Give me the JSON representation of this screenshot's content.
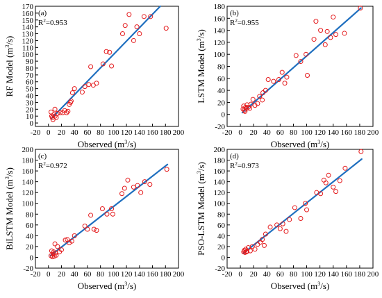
{
  "chart_data": [
    {
      "type": "scatter",
      "panel_label": "(a)",
      "r2_label": "R",
      "r2_sup": "2",
      "r2_value": "=0.953",
      "xlabel": "Observed (m",
      "xlabel_sup": "3",
      "xlabel_tail": "/s)",
      "ylabel": "RF Model (m",
      "ylabel_sup": "3",
      "ylabel_tail": "/s)",
      "xlim": [
        -20,
        200
      ],
      "ylim": [
        -5,
        170
      ],
      "xticks": [
        -20,
        0,
        20,
        40,
        60,
        80,
        100,
        120,
        140,
        160,
        180,
        200
      ],
      "yticks": [
        0,
        10,
        20,
        30,
        40,
        50,
        60,
        70,
        80,
        90,
        100,
        110,
        120,
        130,
        140,
        150,
        160,
        170
      ],
      "fit_line": [
        [
          4,
          6
        ],
        [
          172,
          170
        ]
      ],
      "points": [
        [
          4,
          16
        ],
        [
          5,
          10
        ],
        [
          6,
          8
        ],
        [
          7,
          5
        ],
        [
          8,
          12
        ],
        [
          10,
          10
        ],
        [
          10,
          20
        ],
        [
          12,
          8
        ],
        [
          14,
          14
        ],
        [
          18,
          15
        ],
        [
          22,
          15
        ],
        [
          25,
          18
        ],
        [
          28,
          15
        ],
        [
          30,
          17
        ],
        [
          32,
          27
        ],
        [
          34,
          30
        ],
        [
          35,
          32
        ],
        [
          37,
          44
        ],
        [
          40,
          50
        ],
        [
          52,
          45
        ],
        [
          56,
          53
        ],
        [
          62,
          56
        ],
        [
          65,
          82
        ],
        [
          69,
          55
        ],
        [
          74,
          58
        ],
        [
          84,
          86
        ],
        [
          89,
          104
        ],
        [
          94,
          103
        ],
        [
          97,
          83
        ],
        [
          114,
          130
        ],
        [
          118,
          142
        ],
        [
          124,
          158
        ],
        [
          131,
          120
        ],
        [
          136,
          140
        ],
        [
          140,
          130
        ],
        [
          147,
          155
        ],
        [
          157,
          155
        ],
        [
          181,
          138
        ]
      ]
    },
    {
      "type": "scatter",
      "panel_label": "(b)",
      "r2_label": "R",
      "r2_sup": "2",
      "r2_value": "=0.955",
      "xlabel": "Observed (m",
      "xlabel_sup": "3",
      "xlabel_tail": "/s)",
      "ylabel": "LSTM Model (m",
      "ylabel_sup": "3",
      "ylabel_tail": "/s)",
      "xlim": [
        -20,
        200
      ],
      "ylim": [
        -20,
        180
      ],
      "xticks": [
        -20,
        0,
        20,
        40,
        60,
        80,
        100,
        120,
        140,
        160,
        180,
        200
      ],
      "yticks": [
        -20,
        0,
        20,
        40,
        60,
        80,
        100,
        120,
        140,
        160,
        180
      ],
      "fit_line": [
        [
          3,
          3
        ],
        [
          182,
          177
        ]
      ],
      "points": [
        [
          4,
          9
        ],
        [
          5,
          14
        ],
        [
          6,
          7
        ],
        [
          7,
          5
        ],
        [
          8,
          12
        ],
        [
          9,
          10
        ],
        [
          10,
          16
        ],
        [
          12,
          12
        ],
        [
          14,
          10
        ],
        [
          16,
          17
        ],
        [
          19,
          25
        ],
        [
          22,
          15
        ],
        [
          26,
          18
        ],
        [
          29,
          30
        ],
        [
          33,
          24
        ],
        [
          34,
          36
        ],
        [
          38,
          40
        ],
        [
          42,
          58
        ],
        [
          50,
          55
        ],
        [
          58,
          58
        ],
        [
          63,
          70
        ],
        [
          67,
          52
        ],
        [
          70,
          62
        ],
        [
          84,
          98
        ],
        [
          91,
          88
        ],
        [
          99,
          100
        ],
        [
          101,
          65
        ],
        [
          111,
          125
        ],
        [
          114,
          155
        ],
        [
          121,
          140
        ],
        [
          128,
          116
        ],
        [
          131,
          138
        ],
        [
          136,
          128
        ],
        [
          140,
          162
        ],
        [
          144,
          133
        ],
        [
          157,
          135
        ],
        [
          181,
          177
        ]
      ]
    },
    {
      "type": "scatter",
      "panel_label": "(c)",
      "r2_label": "R",
      "r2_sup": "2",
      "r2_value": "=0.972",
      "xlabel": "Observed (m",
      "xlabel_sup": "3",
      "xlabel_tail": "/s)",
      "ylabel": "BiLSTM Model (m",
      "ylabel_sup": "3",
      "ylabel_tail": "/s)",
      "xlim": [
        -20,
        200
      ],
      "ylim": [
        -20,
        200
      ],
      "xticks": [
        -20,
        0,
        20,
        40,
        60,
        80,
        100,
        120,
        140,
        160,
        180,
        200
      ],
      "yticks": [
        -20,
        0,
        20,
        40,
        60,
        80,
        100,
        120,
        140,
        160,
        180,
        200
      ],
      "fit_line": [
        [
          3,
          3
        ],
        [
          183,
          172
        ]
      ],
      "points": [
        [
          4,
          3
        ],
        [
          5,
          12
        ],
        [
          6,
          1
        ],
        [
          7,
          6
        ],
        [
          8,
          10
        ],
        [
          9,
          2
        ],
        [
          10,
          25
        ],
        [
          11,
          8
        ],
        [
          12,
          4
        ],
        [
          14,
          20
        ],
        [
          17,
          10
        ],
        [
          20,
          14
        ],
        [
          26,
          32
        ],
        [
          29,
          33
        ],
        [
          32,
          27
        ],
        [
          36,
          30
        ],
        [
          40,
          40
        ],
        [
          56,
          58
        ],
        [
          60,
          52
        ],
        [
          65,
          78
        ],
        [
          70,
          52
        ],
        [
          74,
          50
        ],
        [
          83,
          90
        ],
        [
          90,
          80
        ],
        [
          97,
          90
        ],
        [
          99,
          80
        ],
        [
          113,
          118
        ],
        [
          117,
          128
        ],
        [
          122,
          143
        ],
        [
          131,
          130
        ],
        [
          137,
          133
        ],
        [
          142,
          120
        ],
        [
          148,
          140
        ],
        [
          156,
          135
        ],
        [
          182,
          163
        ]
      ]
    },
    {
      "type": "scatter",
      "panel_label": "(d)",
      "r2_label": "R",
      "r2_sup": "2",
      "r2_value": "=0.973",
      "xlabel": "Observed (m",
      "xlabel_sup": "3",
      "xlabel_tail": "/s)",
      "ylabel": "PSO-LSTM Model (m",
      "ylabel_sup": "3",
      "ylabel_tail": "/s)",
      "xlim": [
        -20,
        200
      ],
      "ylim": [
        -20,
        200
      ],
      "xticks": [
        -20,
        0,
        20,
        40,
        60,
        80,
        100,
        120,
        140,
        160,
        180,
        200
      ],
      "yticks": [
        -20,
        0,
        20,
        40,
        60,
        80,
        100,
        120,
        140,
        160,
        180,
        200
      ],
      "fit_line": [
        [
          5,
          8
        ],
        [
          183,
          182
        ]
      ],
      "points": [
        [
          5,
          10
        ],
        [
          6,
          13
        ],
        [
          7,
          9
        ],
        [
          8,
          15
        ],
        [
          9,
          10
        ],
        [
          10,
          11
        ],
        [
          12,
          18
        ],
        [
          15,
          12
        ],
        [
          18,
          20
        ],
        [
          22,
          15
        ],
        [
          26,
          24
        ],
        [
          30,
          28
        ],
        [
          33,
          33
        ],
        [
          36,
          22
        ],
        [
          38,
          43
        ],
        [
          45,
          56
        ],
        [
          55,
          60
        ],
        [
          60,
          53
        ],
        [
          64,
          62
        ],
        [
          69,
          48
        ],
        [
          74,
          70
        ],
        [
          82,
          92
        ],
        [
          91,
          72
        ],
        [
          98,
          100
        ],
        [
          100,
          88
        ],
        [
          115,
          120
        ],
        [
          121,
          118
        ],
        [
          126,
          143
        ],
        [
          129,
          138
        ],
        [
          133,
          152
        ],
        [
          140,
          130
        ],
        [
          144,
          122
        ],
        [
          150,
          142
        ],
        [
          158,
          165
        ],
        [
          182,
          196
        ]
      ]
    }
  ]
}
